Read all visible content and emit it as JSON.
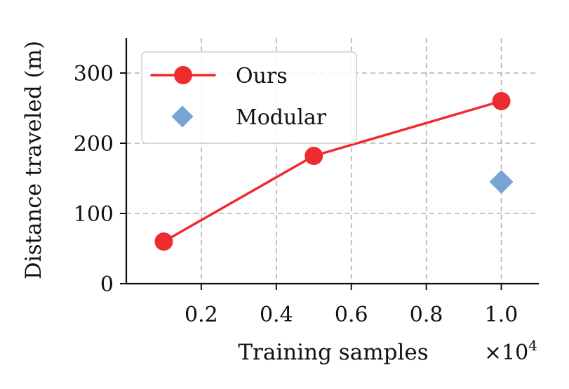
{
  "chart_data": {
    "type": "line",
    "xlabel": "Training samples",
    "ylabel": "Distance traveled (m)",
    "x_multiplier": {
      "base": "×10",
      "exponent": "4"
    },
    "xlim": [
      0,
      11000
    ],
    "ylim": [
      0,
      350
    ],
    "xticks": [
      {
        "value": 2000,
        "label": "0.2"
      },
      {
        "value": 4000,
        "label": "0.4"
      },
      {
        "value": 6000,
        "label": "0.6"
      },
      {
        "value": 8000,
        "label": "0.8"
      },
      {
        "value": 10000,
        "label": "1.0"
      }
    ],
    "yticks": [
      {
        "value": 0,
        "label": "0"
      },
      {
        "value": 100,
        "label": "100"
      },
      {
        "value": 200,
        "label": "200"
      },
      {
        "value": 300,
        "label": "300"
      }
    ],
    "grid": true,
    "legend_position": "top-left",
    "series": [
      {
        "name": "Ours",
        "style": "line-marker",
        "marker": "circle",
        "color": "#ee2b2e",
        "x": [
          1000,
          5000,
          10000
        ],
        "y": [
          60,
          182,
          260
        ]
      },
      {
        "name": "Modular",
        "style": "marker",
        "marker": "diamond",
        "color": "#7aa3d4",
        "x": [
          10000
        ],
        "y": [
          145
        ]
      }
    ]
  }
}
